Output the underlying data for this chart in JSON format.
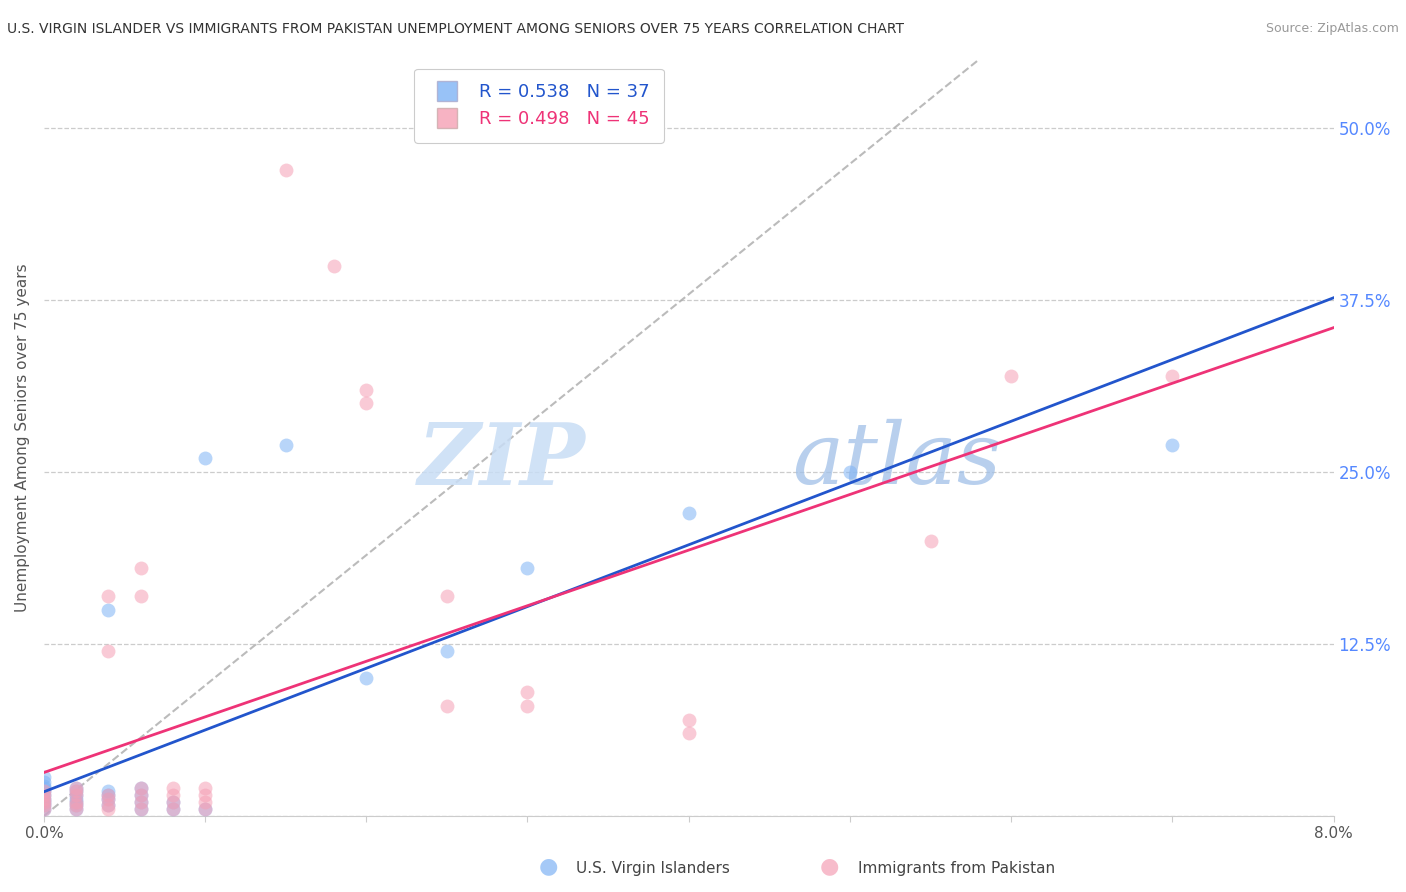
{
  "title": "U.S. VIRGIN ISLANDER VS IMMIGRANTS FROM PAKISTAN UNEMPLOYMENT AMONG SENIORS OVER 75 YEARS CORRELATION CHART",
  "source": "Source: ZipAtlas.com",
  "ylabel": "Unemployment Among Seniors over 75 years",
  "legend_labels": [
    "U.S. Virgin Islanders",
    "Immigrants from Pakistan"
  ],
  "R_blue": 0.538,
  "N_blue": 37,
  "R_pink": 0.498,
  "N_pink": 45,
  "xlim": [
    0.0,
    0.08
  ],
  "ylim": [
    0.0,
    0.55
  ],
  "yticks_right": [
    0.0,
    0.125,
    0.25,
    0.375,
    0.5
  ],
  "ytick_labels_right": [
    "",
    "12.5%",
    "25.0%",
    "37.5%",
    "50.0%"
  ],
  "xticks": [
    0.0,
    0.01,
    0.02,
    0.03,
    0.04,
    0.05,
    0.06,
    0.07,
    0.08
  ],
  "xtick_labels": [
    "0.0%",
    "",
    "",
    "",
    "",
    "",
    "",
    "",
    "8.0%"
  ],
  "grid_color": "#cccccc",
  "background_color": "#ffffff",
  "blue_color": "#7fb3f5",
  "pink_color": "#f5a0b5",
  "blue_line_color": "#2255cc",
  "pink_line_color": "#ee3377",
  "ref_line_color": "#aaaaaa",
  "watermark_zip": "ZIP",
  "watermark_atlas": "atlas",
  "blue_dots": [
    [
      0.0,
      0.005
    ],
    [
      0.0,
      0.008
    ],
    [
      0.0,
      0.01
    ],
    [
      0.0,
      0.012
    ],
    [
      0.0,
      0.015
    ],
    [
      0.0,
      0.018
    ],
    [
      0.0,
      0.02
    ],
    [
      0.0,
      0.022
    ],
    [
      0.0,
      0.025
    ],
    [
      0.0,
      0.028
    ],
    [
      0.002,
      0.005
    ],
    [
      0.002,
      0.008
    ],
    [
      0.002,
      0.01
    ],
    [
      0.002,
      0.012
    ],
    [
      0.002,
      0.015
    ],
    [
      0.002,
      0.018
    ],
    [
      0.002,
      0.02
    ],
    [
      0.004,
      0.008
    ],
    [
      0.004,
      0.012
    ],
    [
      0.004,
      0.015
    ],
    [
      0.004,
      0.018
    ],
    [
      0.004,
      0.15
    ],
    [
      0.006,
      0.005
    ],
    [
      0.006,
      0.01
    ],
    [
      0.006,
      0.015
    ],
    [
      0.006,
      0.02
    ],
    [
      0.008,
      0.005
    ],
    [
      0.008,
      0.01
    ],
    [
      0.01,
      0.005
    ],
    [
      0.01,
      0.26
    ],
    [
      0.015,
      0.27
    ],
    [
      0.02,
      0.1
    ],
    [
      0.025,
      0.12
    ],
    [
      0.03,
      0.18
    ],
    [
      0.04,
      0.22
    ],
    [
      0.05,
      0.25
    ],
    [
      0.07,
      0.27
    ]
  ],
  "pink_dots": [
    [
      0.0,
      0.005
    ],
    [
      0.0,
      0.008
    ],
    [
      0.0,
      0.01
    ],
    [
      0.0,
      0.012
    ],
    [
      0.0,
      0.015
    ],
    [
      0.0,
      0.018
    ],
    [
      0.002,
      0.005
    ],
    [
      0.002,
      0.008
    ],
    [
      0.002,
      0.01
    ],
    [
      0.002,
      0.015
    ],
    [
      0.002,
      0.018
    ],
    [
      0.002,
      0.02
    ],
    [
      0.004,
      0.005
    ],
    [
      0.004,
      0.008
    ],
    [
      0.004,
      0.012
    ],
    [
      0.004,
      0.015
    ],
    [
      0.004,
      0.12
    ],
    [
      0.004,
      0.16
    ],
    [
      0.006,
      0.005
    ],
    [
      0.006,
      0.01
    ],
    [
      0.006,
      0.015
    ],
    [
      0.006,
      0.02
    ],
    [
      0.006,
      0.16
    ],
    [
      0.006,
      0.18
    ],
    [
      0.008,
      0.005
    ],
    [
      0.008,
      0.01
    ],
    [
      0.008,
      0.015
    ],
    [
      0.008,
      0.02
    ],
    [
      0.01,
      0.005
    ],
    [
      0.01,
      0.01
    ],
    [
      0.01,
      0.015
    ],
    [
      0.01,
      0.02
    ],
    [
      0.015,
      0.47
    ],
    [
      0.018,
      0.4
    ],
    [
      0.02,
      0.3
    ],
    [
      0.02,
      0.31
    ],
    [
      0.025,
      0.08
    ],
    [
      0.025,
      0.16
    ],
    [
      0.03,
      0.08
    ],
    [
      0.03,
      0.09
    ],
    [
      0.04,
      0.06
    ],
    [
      0.04,
      0.07
    ],
    [
      0.055,
      0.2
    ],
    [
      0.06,
      0.32
    ],
    [
      0.07,
      0.32
    ]
  ]
}
